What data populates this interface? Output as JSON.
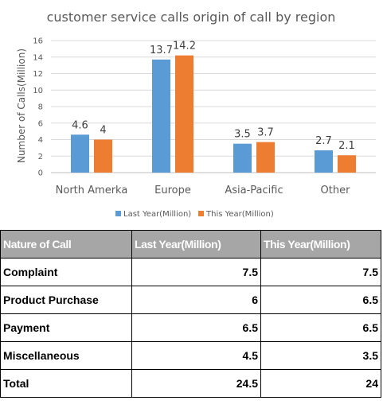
{
  "chart_data": {
    "type": "bar",
    "title": "customer service calls origin of call by region",
    "xlabel": "",
    "ylabel": "Number of Calls(Million)",
    "ylim": [
      0,
      16
    ],
    "yticks": [
      0,
      2,
      4,
      6,
      8,
      10,
      12,
      14,
      16
    ],
    "categories": [
      "North Amerka",
      "Europe",
      "Asia-Pacific",
      "Other"
    ],
    "series": [
      {
        "name": "Last Year(Million)",
        "values": [
          4.6,
          13.7,
          3.5,
          2.7
        ],
        "color": "#5b9bd5"
      },
      {
        "name": "This Year(Million)",
        "values": [
          4,
          14.2,
          3.7,
          2.1
        ],
        "color": "#ed7d31"
      }
    ],
    "data_labels": [
      [
        "4.6",
        "13.7",
        "3.5",
        "2.7"
      ],
      [
        "4",
        "14.2",
        "3.7",
        "2.1"
      ]
    ],
    "grid": true,
    "legend_position": "bottom"
  },
  "table": {
    "headers": [
      "Nature of Call",
      "Last Year(Million)",
      "This Year(Million)"
    ],
    "header_bg": "#a6a6a6",
    "rows": [
      [
        "Complaint",
        "7.5",
        "7.5"
      ],
      [
        "Product Purchase",
        "6",
        "6.5"
      ],
      [
        "Payment",
        "6.5",
        "6.5"
      ],
      [
        "Miscellaneous",
        "4.5",
        "3.5"
      ],
      [
        "Total",
        "24.5",
        "24"
      ]
    ]
  }
}
